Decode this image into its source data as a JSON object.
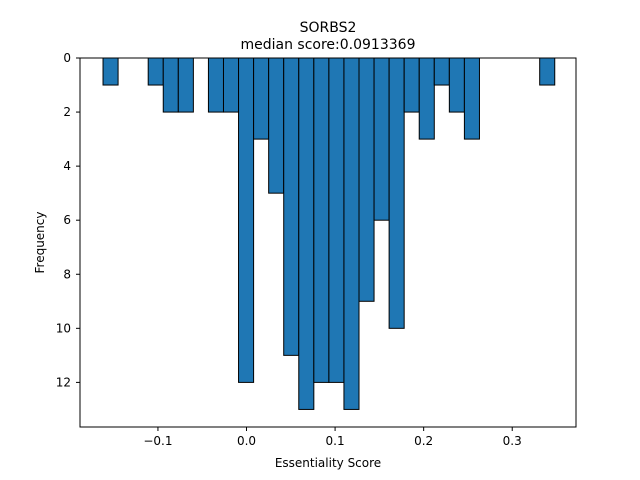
{
  "chart_data": {
    "type": "bar",
    "title": "SORBS2",
    "subtitle": "median score:0.0913369",
    "xlabel": "Essentiality Score",
    "ylabel": "Frequency",
    "xlim": [
      -0.188,
      0.372
    ],
    "ylim": [
      13.65,
      0
    ],
    "y_axis_inverted": true,
    "grid": false,
    "bar_color": "#1f77b4",
    "edge_color": "#000000",
    "bin_width": 0.017,
    "x_ticks": [
      -0.1,
      0.0,
      0.1,
      0.2,
      0.3
    ],
    "x_tick_labels": [
      "−0.1",
      "0.0",
      "0.1",
      "0.2",
      "0.3"
    ],
    "y_ticks": [
      0,
      2,
      4,
      6,
      8,
      10,
      12
    ],
    "y_tick_labels": [
      "0",
      "2",
      "4",
      "6",
      "8",
      "10",
      "12"
    ],
    "bins": [
      {
        "x0": -0.162,
        "x1": -0.145,
        "count": 1
      },
      {
        "x0": -0.111,
        "x1": -0.094,
        "count": 1
      },
      {
        "x0": -0.094,
        "x1": -0.077,
        "count": 2
      },
      {
        "x0": -0.077,
        "x1": -0.06,
        "count": 2
      },
      {
        "x0": -0.043,
        "x1": -0.026,
        "count": 2
      },
      {
        "x0": -0.026,
        "x1": -0.009,
        "count": 2
      },
      {
        "x0": -0.009,
        "x1": 0.008,
        "count": 12
      },
      {
        "x0": 0.008,
        "x1": 0.025,
        "count": 3
      },
      {
        "x0": 0.025,
        "x1": 0.042,
        "count": 5
      },
      {
        "x0": 0.042,
        "x1": 0.059,
        "count": 11
      },
      {
        "x0": 0.059,
        "x1": 0.076,
        "count": 13
      },
      {
        "x0": 0.076,
        "x1": 0.093,
        "count": 12
      },
      {
        "x0": 0.093,
        "x1": 0.11,
        "count": 12
      },
      {
        "x0": 0.11,
        "x1": 0.127,
        "count": 13
      },
      {
        "x0": 0.127,
        "x1": 0.144,
        "count": 9
      },
      {
        "x0": 0.144,
        "x1": 0.161,
        "count": 6
      },
      {
        "x0": 0.161,
        "x1": 0.178,
        "count": 10
      },
      {
        "x0": 0.178,
        "x1": 0.195,
        "count": 2
      },
      {
        "x0": 0.195,
        "x1": 0.212,
        "count": 3
      },
      {
        "x0": 0.212,
        "x1": 0.229,
        "count": 1
      },
      {
        "x0": 0.229,
        "x1": 0.246,
        "count": 2
      },
      {
        "x0": 0.246,
        "x1": 0.263,
        "count": 3
      },
      {
        "x0": 0.331,
        "x1": 0.348,
        "count": 1
      }
    ]
  }
}
